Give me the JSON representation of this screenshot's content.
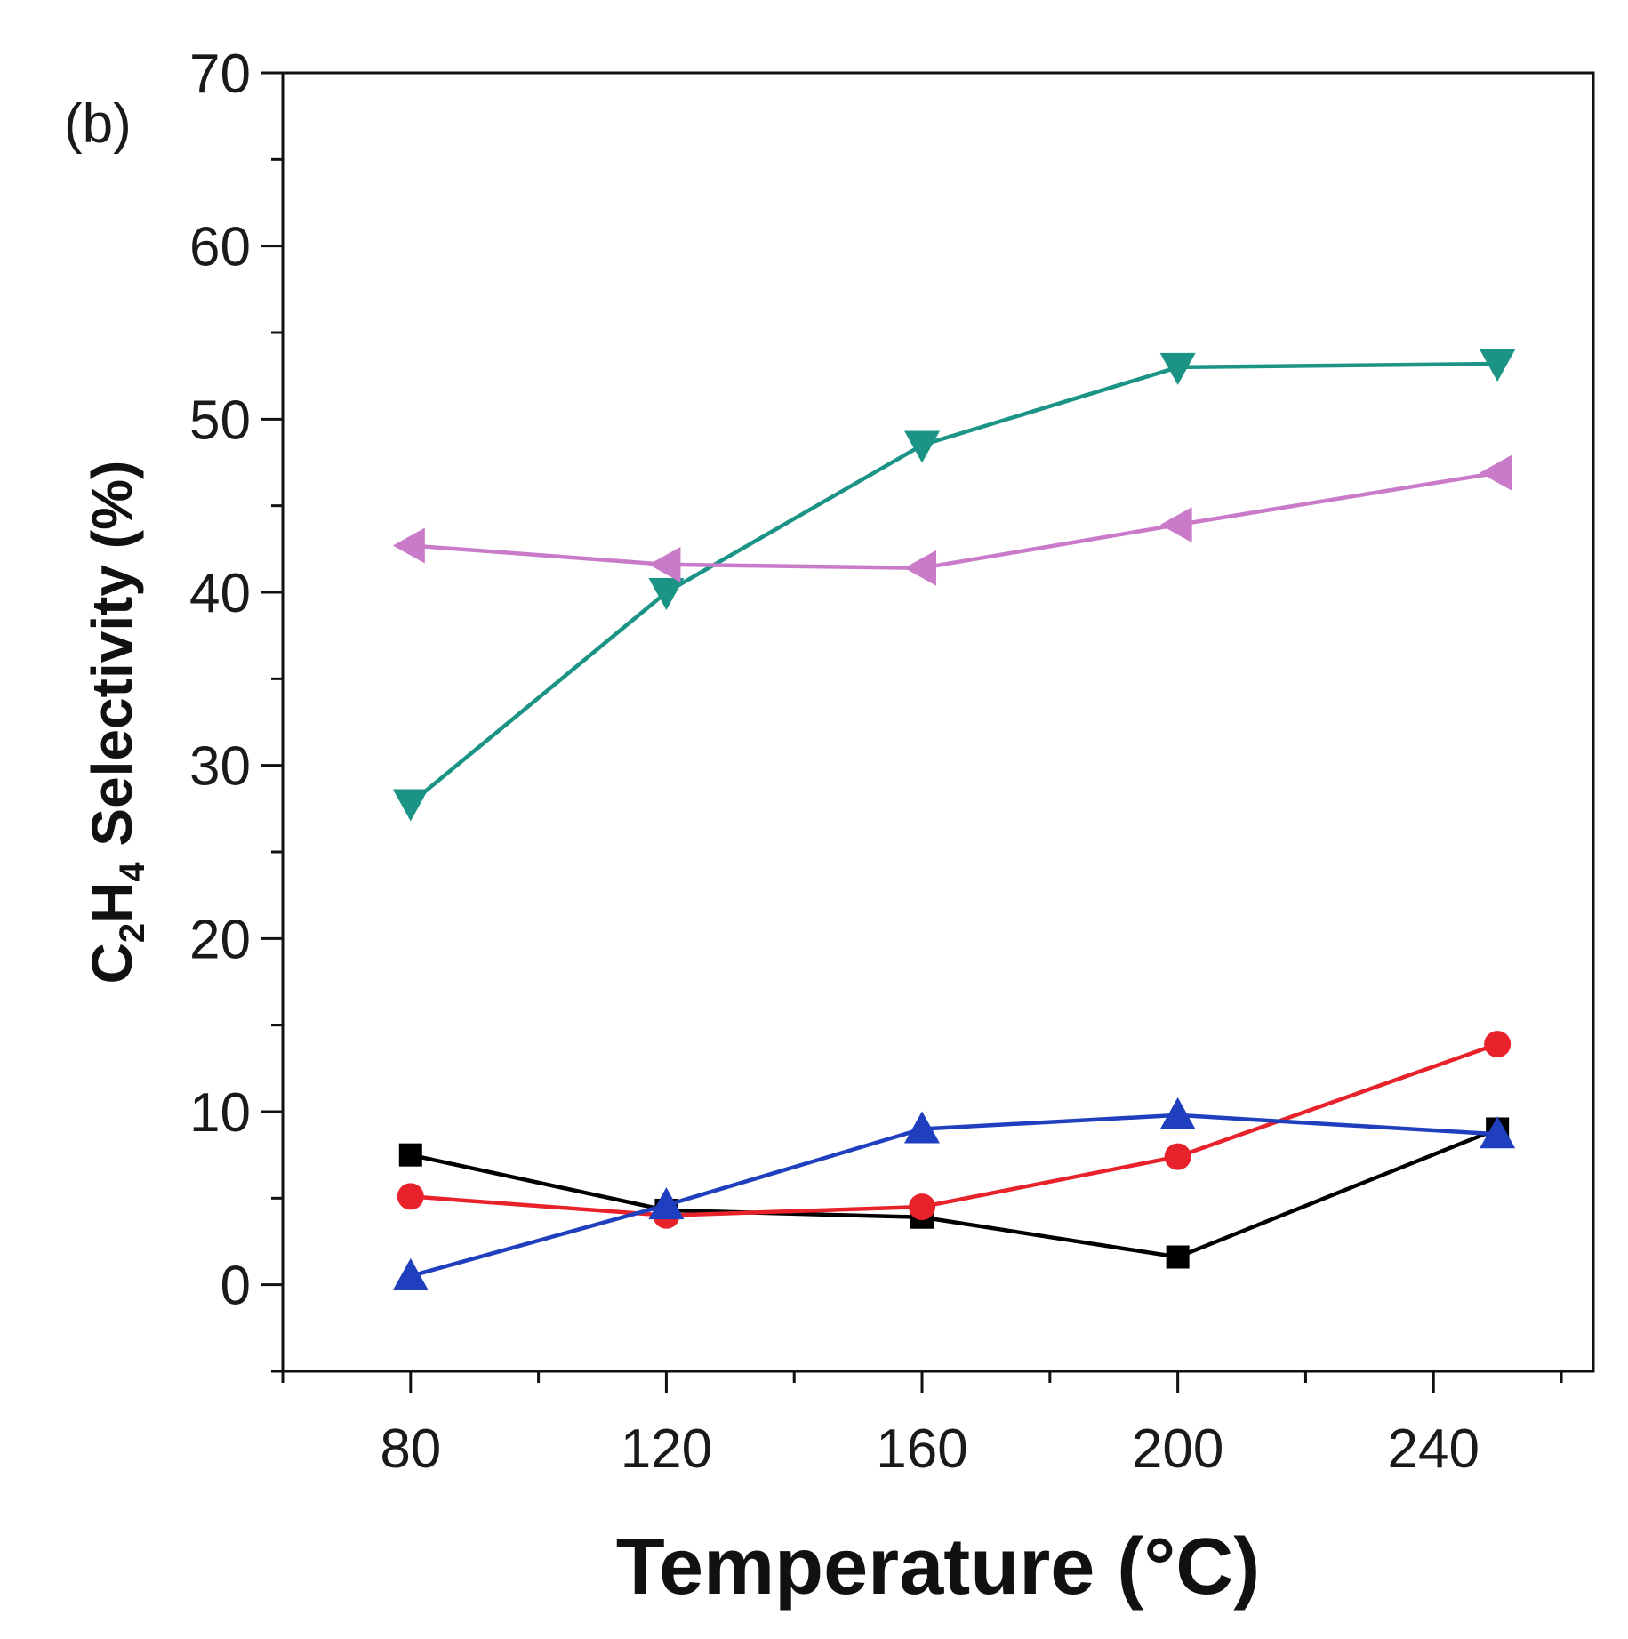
{
  "chart_data": {
    "type": "line",
    "panel_label": "(b)",
    "title": "",
    "xlabel": "Temperature (°C)",
    "ylabel": {
      "prefix": "C",
      "sub1": "2",
      "mid": "H",
      "sub2": "4",
      "suffix": " Selectivity (%)"
    },
    "xlim": [
      60,
      265
    ],
    "ylim": [
      -5,
      70
    ],
    "x_ticks": [
      80,
      120,
      160,
      200,
      240
    ],
    "x_tick_labels": [
      "80",
      "120",
      "160",
      "200",
      "240"
    ],
    "x_minor_ticks": [
      60,
      100,
      140,
      180,
      220,
      260
    ],
    "y_ticks": [
      0,
      10,
      20,
      30,
      40,
      50,
      60,
      70
    ],
    "y_tick_labels": [
      "0",
      "10",
      "20",
      "30",
      "40",
      "50",
      "60",
      "70"
    ],
    "y_minor_ticks": [
      -5,
      5,
      15,
      25,
      35,
      45,
      55,
      65
    ],
    "legend": "none",
    "grid": false,
    "x": [
      80,
      120,
      160,
      200,
      250
    ],
    "series": [
      {
        "name": "black squares",
        "color": "#000000",
        "marker": "square",
        "values": [
          7.5,
          4.3,
          3.9,
          1.6,
          9.0
        ]
      },
      {
        "name": "red circles",
        "color": "#e8222b",
        "marker": "circle",
        "values": [
          5.1,
          4.0,
          4.5,
          7.4,
          13.9
        ]
      },
      {
        "name": "blue up-triangles",
        "color": "#1f3fbf",
        "marker": "triangle-up",
        "values": [
          0.5,
          4.6,
          9.0,
          9.8,
          8.7
        ]
      },
      {
        "name": "teal down-triangles",
        "color": "#1b9486",
        "marker": "triangle-down",
        "values": [
          27.8,
          40.0,
          48.5,
          53.0,
          53.2
        ]
      },
      {
        "name": "violet left-triangles",
        "color": "#c97bc9",
        "marker": "triangle-left",
        "values": [
          42.7,
          41.6,
          41.4,
          43.9,
          46.9
        ]
      }
    ]
  }
}
